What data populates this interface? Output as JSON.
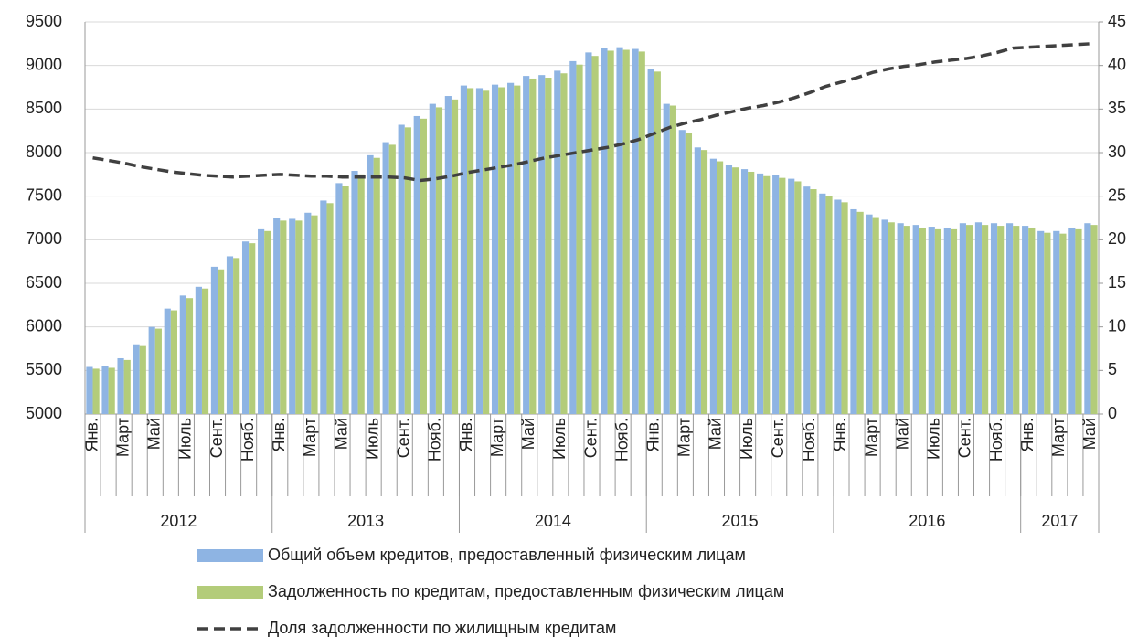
{
  "chart_data": {
    "type": "bar",
    "categories": [
      "Янв.",
      null,
      "Март",
      null,
      "Май",
      null,
      "Июль",
      null,
      "Сент.",
      null,
      "Нояб.",
      null,
      "Янв.",
      null,
      "Март",
      null,
      "Май",
      null,
      "Июль",
      null,
      "Сент.",
      null,
      "Нояб.",
      null,
      "Янв.",
      null,
      "Март",
      null,
      "Май",
      null,
      "Июль",
      null,
      "Сент.",
      null,
      "Нояб.",
      null,
      "Янв.",
      null,
      "Март",
      null,
      "Май",
      null,
      "Июль",
      null,
      "Сент.",
      null,
      "Нояб.",
      null,
      "Янв.",
      null,
      "Март",
      null,
      "Май",
      null,
      "Июль",
      null,
      "Сент.",
      null,
      "Нояб.",
      null,
      "Янв.",
      null,
      "Март",
      null,
      "Май"
    ],
    "years": [
      "2012",
      "2013",
      "2014",
      "2015",
      "2016",
      "2017"
    ],
    "series": [
      {
        "name": "Общий объем кредитов, предоставленный физическим лицам",
        "type": "bar",
        "color": "#8eb4e3",
        "values": [
          5540,
          5550,
          5640,
          5800,
          6000,
          6210,
          6360,
          6460,
          6690,
          6810,
          6980,
          7120,
          7250,
          7240,
          7310,
          7450,
          7650,
          7790,
          7970,
          8120,
          8320,
          8420,
          8560,
          8650,
          8770,
          8740,
          8780,
          8800,
          8880,
          8890,
          8940,
          9050,
          9150,
          9200,
          9210,
          9190,
          8960,
          8560,
          8260,
          8060,
          7930,
          7860,
          7810,
          7760,
          7740,
          7700,
          7610,
          7530,
          7460,
          7350,
          7290,
          7230,
          7190,
          7170,
          7150,
          7140,
          7190,
          7200,
          7190,
          7190,
          7160,
          7100,
          7100,
          7140,
          7190
        ]
      },
      {
        "name": "Задолженность по кредитам, предоставленным физическим лицам",
        "type": "bar",
        "color": "#b3cc7a",
        "values": [
          5520,
          5530,
          5620,
          5780,
          5980,
          6190,
          6330,
          6440,
          6660,
          6790,
          6960,
          7100,
          7220,
          7220,
          7280,
          7420,
          7620,
          7750,
          7940,
          8090,
          8290,
          8390,
          8520,
          8610,
          8740,
          8710,
          8750,
          8770,
          8850,
          8860,
          8910,
          9010,
          9110,
          9170,
          9180,
          9160,
          8930,
          8540,
          8230,
          8030,
          7900,
          7830,
          7780,
          7730,
          7710,
          7670,
          7580,
          7500,
          7430,
          7320,
          7260,
          7200,
          7160,
          7140,
          7120,
          7120,
          7170,
          7170,
          7160,
          7160,
          7140,
          7080,
          7070,
          7120,
          7170
        ]
      },
      {
        "name": "Доля задолженности по жилищным кредитам",
        "type": "line",
        "axis": "y2",
        "dashed": true,
        "color": "#404040",
        "values": [
          29.4,
          29.1,
          28.8,
          28.4,
          28.1,
          27.8,
          27.6,
          27.4,
          27.3,
          27.2,
          27.3,
          27.4,
          27.5,
          27.4,
          27.3,
          27.3,
          27.2,
          27.2,
          27.2,
          27.2,
          27.1,
          26.8,
          27.0,
          27.3,
          27.7,
          28.0,
          28.3,
          28.6,
          29.0,
          29.4,
          29.7,
          30.0,
          30.3,
          30.6,
          31.0,
          31.5,
          32.2,
          32.9,
          33.4,
          33.8,
          34.3,
          34.7,
          35.1,
          35.4,
          35.8,
          36.3,
          36.9,
          37.6,
          38.1,
          38.6,
          39.2,
          39.6,
          39.9,
          40.1,
          40.4,
          40.6,
          40.8,
          41.1,
          41.5,
          42.0,
          42.1,
          42.2,
          42.3,
          42.4,
          42.5
        ]
      }
    ],
    "ylim": [
      5000,
      9500
    ],
    "yticks": [
      5000,
      5500,
      6000,
      6500,
      7000,
      7500,
      8000,
      8500,
      9000,
      9500
    ],
    "y2lim": [
      0,
      45
    ],
    "y2ticks": [
      0,
      5,
      10,
      15,
      20,
      25,
      30,
      35,
      40,
      45
    ],
    "grid": true
  }
}
